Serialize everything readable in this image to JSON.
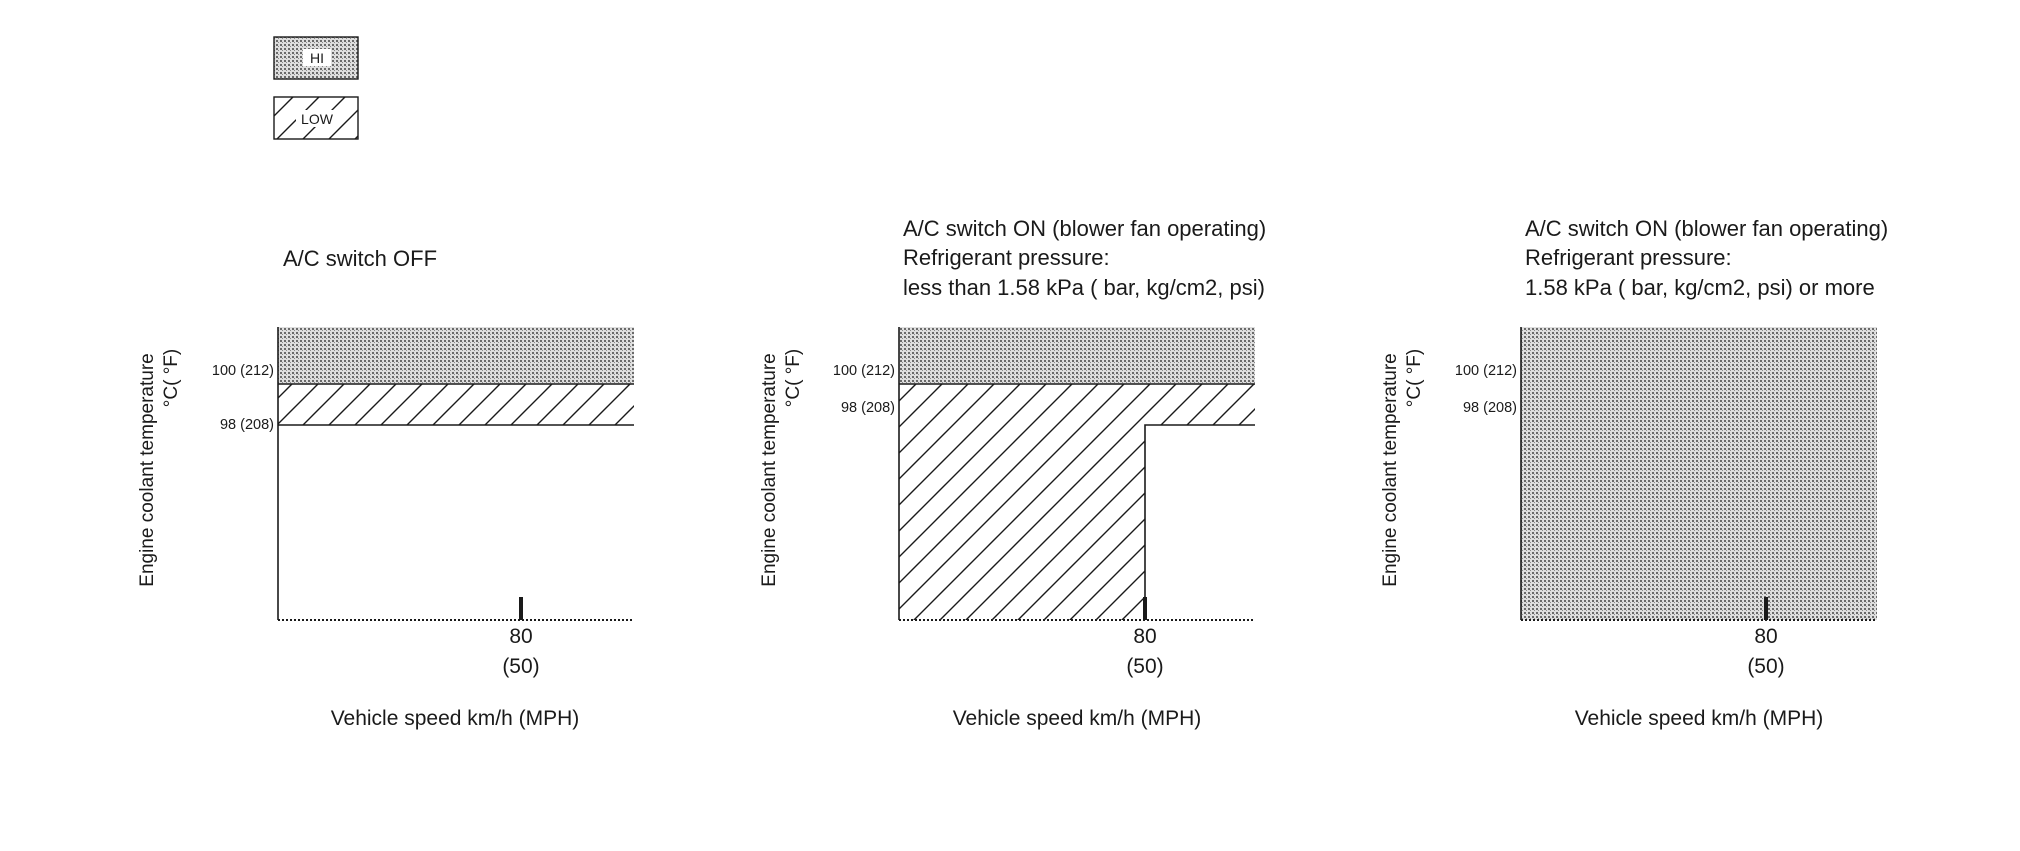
{
  "legend": [
    {
      "label": "HI",
      "pattern": "dots"
    },
    {
      "label": "LOW",
      "pattern": "hatch"
    }
  ],
  "panels": [
    {
      "caption": [
        "A/C switch OFF"
      ],
      "y_axis_label": [
        "Engine coolant temperature",
        "°C( °F)"
      ],
      "y_ticks": [
        "100 (212)",
        "98 (208)"
      ],
      "x_tick": [
        "80",
        "(50)"
      ],
      "x_axis_label": "Vehicle speed km/h (MPH)"
    },
    {
      "caption": [
        "A/C switch ON (blower fan operating)",
        "Refrigerant pressure:",
        "less than 1.58 kPa ( bar, kg/cm2, psi)"
      ],
      "y_axis_label": [
        "Engine coolant temperature",
        "°C( °F)"
      ],
      "y_ticks": [
        "100 (212)",
        "98 (208)"
      ],
      "x_tick": [
        "80",
        "(50)"
      ],
      "x_axis_label": "Vehicle speed km/h (MPH)"
    },
    {
      "caption": [
        "A/C switch ON (blower fan operating)",
        "Refrigerant pressure:",
        "1.58 kPa (  bar,   kg/cm2,   psi) or more"
      ],
      "y_axis_label": [
        "Engine coolant temperature",
        "°C( °F)"
      ],
      "y_ticks": [
        "100 (212)",
        "98 (208)"
      ],
      "x_tick": [
        "80",
        "(50)"
      ],
      "x_axis_label": "Vehicle speed km/h (MPH)"
    }
  ],
  "colors": {
    "ink": "#1a1a1a",
    "hi_fill": "#c8c8c8"
  }
}
